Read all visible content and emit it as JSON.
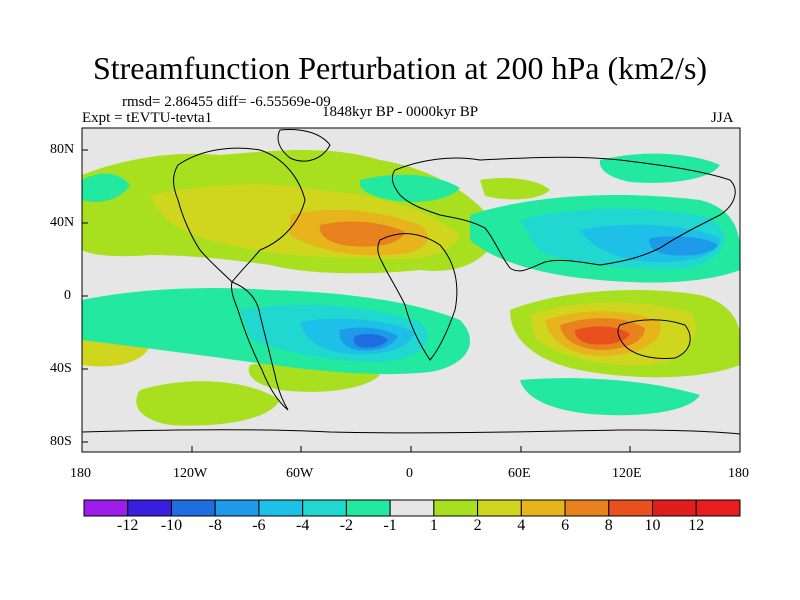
{
  "title": "Streamfunction Perturbation at 200 hPa (km2/s)",
  "stats": "rmsd= 2.86455 diff= -6.55569e-09",
  "experiment": "Expt = tEVTU-tevta1",
  "period": "1848kyr BP - 0000kyr BP",
  "season": "JJA",
  "lat_labels": [
    "80N",
    "40N",
    "0",
    "40S",
    "80S"
  ],
  "lon_labels": [
    "180",
    "120W",
    "60W",
    "0",
    "60E",
    "120E",
    "180"
  ],
  "colorbar": {
    "labels": [
      "-12",
      "-10",
      "-8",
      "-6",
      "-4",
      "-2",
      "-1",
      "1",
      "2",
      "4",
      "6",
      "8",
      "10",
      "12"
    ],
    "colors": [
      "#9c1de8",
      "#3a1ee0",
      "#1f6ee0",
      "#1e9be8",
      "#1ec0e8",
      "#20d8d0",
      "#22e8a0",
      "#e6e6e6",
      "#a8e020",
      "#d0d61e",
      "#e8b41e",
      "#e8821e",
      "#e8501e",
      "#e01e1e",
      "#e81e1e"
    ]
  }
}
